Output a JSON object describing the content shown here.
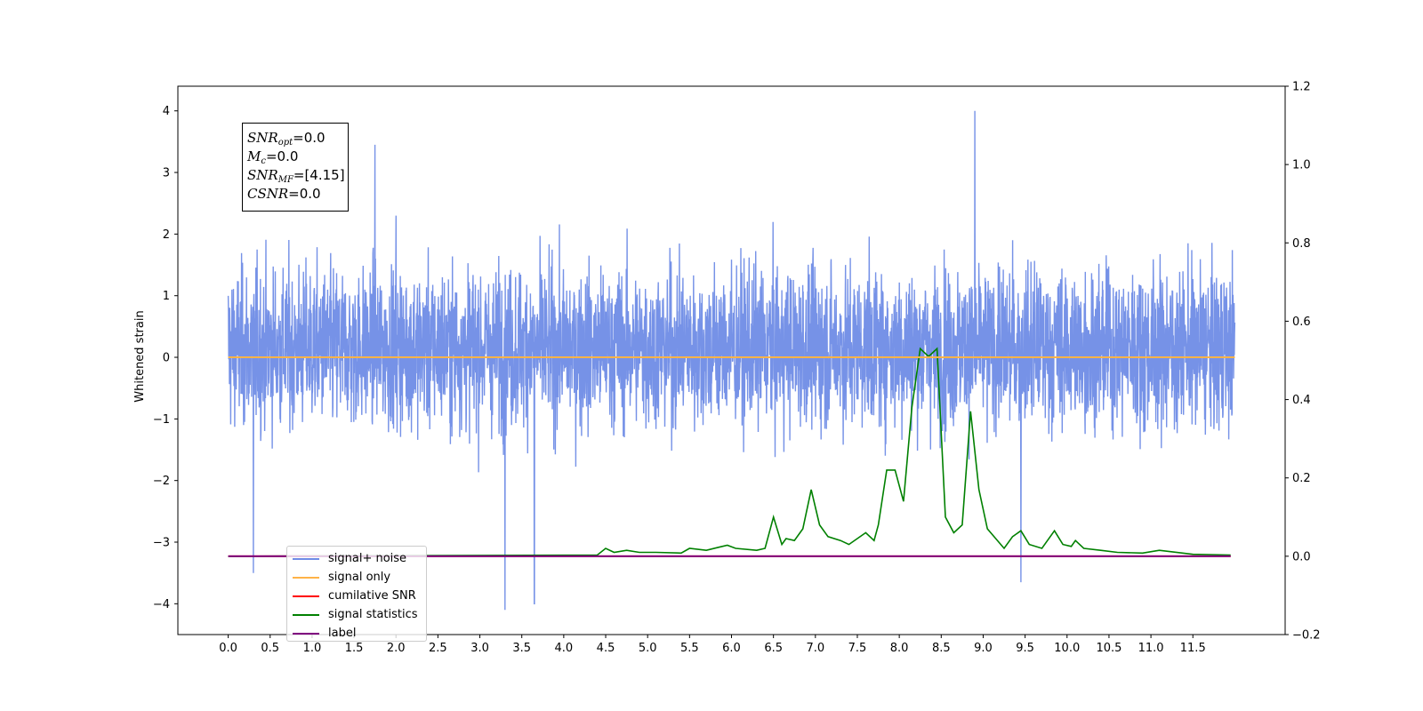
{
  "chart_data": {
    "type": "line",
    "ylabel": "Whitened strain",
    "x_ticks": [
      "0.0",
      "0.5",
      "1.0",
      "1.5",
      "2.0",
      "2.5",
      "3.0",
      "3.5",
      "4.0",
      "4.5",
      "5.0",
      "5.5",
      "6.0",
      "6.5",
      "7.0",
      "7.5",
      "8.0",
      "8.5",
      "9.0",
      "9.5",
      "10.0",
      "10.5",
      "11.0",
      "11.5"
    ],
    "xlim": [
      -0.6,
      12.6
    ],
    "ylim_left": [
      -4.5,
      4.4
    ],
    "yticks_left": [
      -4,
      -3,
      -2,
      -1,
      0,
      1,
      2,
      3,
      4
    ],
    "ylim_right": [
      -0.2,
      1.2
    ],
    "yticks_right": [
      -0.2,
      0.0,
      0.2,
      0.4,
      0.6,
      0.8,
      1.0,
      1.2
    ],
    "yticks_right_labels": [
      "−0.2",
      "0.0",
      "0.2",
      "0.4",
      "0.6",
      "0.8",
      "1.0",
      "1.2"
    ],
    "legend_location": "lower-left",
    "annotation_lines": [
      {
        "sym": "SNR",
        "sub": "opt",
        "value": "=0.0"
      },
      {
        "sym": "M",
        "sub": "c",
        "value": "=0.0"
      },
      {
        "sym": "SNR",
        "sub": "MF",
        "value": "=[4.15]"
      },
      {
        "sym": "CSNR",
        "sub": "",
        "value": "=0.0"
      }
    ],
    "series": [
      {
        "name": "signal+ noise",
        "color": "#6f8ce6",
        "axis": "left",
        "kind": "noise",
        "x_range": [
          0.0,
          12.0
        ],
        "approx_range": [
          -4.1,
          4.0
        ],
        "notable_extremes": [
          [
            0.3,
            -3.5
          ],
          [
            3.3,
            -4.1
          ],
          [
            3.65,
            -4.0
          ],
          [
            8.9,
            4.0
          ],
          [
            9.45,
            -3.65
          ],
          [
            2.0,
            2.3
          ],
          [
            1.75,
            3.45
          ]
        ]
      },
      {
        "name": "signal only",
        "color": "#ffb347",
        "axis": "left",
        "x": [
          0.0,
          12.0
        ],
        "y": [
          0.0,
          0.0
        ]
      },
      {
        "name": "cumilative SNR",
        "color": "#ff0000",
        "axis": "right",
        "x": [
          0.0,
          11.95
        ],
        "y": [
          0.0,
          0.0
        ]
      },
      {
        "name": "signal statistics",
        "color": "#008000",
        "axis": "right",
        "x": [
          0.0,
          4.4,
          4.5,
          4.6,
          4.75,
          4.9,
          5.1,
          5.4,
          5.5,
          5.7,
          5.85,
          5.95,
          6.05,
          6.3,
          6.4,
          6.5,
          6.6,
          6.65,
          6.75,
          6.85,
          6.95,
          7.05,
          7.15,
          7.3,
          7.4,
          7.6,
          7.7,
          7.75,
          7.85,
          7.95,
          8.05,
          8.15,
          8.25,
          8.35,
          8.45,
          8.55,
          8.65,
          8.75,
          8.85,
          8.95,
          9.05,
          9.25,
          9.35,
          9.45,
          9.55,
          9.7,
          9.85,
          9.95,
          10.05,
          10.1,
          10.2,
          10.4,
          10.6,
          10.9,
          11.1,
          11.5,
          11.95
        ],
        "y": [
          0.0,
          0.003,
          0.02,
          0.01,
          0.015,
          0.01,
          0.01,
          0.008,
          0.02,
          0.015,
          0.023,
          0.028,
          0.02,
          0.015,
          0.02,
          0.1,
          0.03,
          0.045,
          0.04,
          0.07,
          0.17,
          0.08,
          0.05,
          0.04,
          0.03,
          0.06,
          0.04,
          0.08,
          0.22,
          0.22,
          0.14,
          0.38,
          0.53,
          0.51,
          0.53,
          0.1,
          0.06,
          0.08,
          0.37,
          0.17,
          0.07,
          0.02,
          0.05,
          0.065,
          0.03,
          0.02,
          0.065,
          0.03,
          0.025,
          0.04,
          0.02,
          0.015,
          0.01,
          0.008,
          0.015,
          0.005,
          0.003
        ]
      },
      {
        "name": "label",
        "color": "#800080",
        "axis": "right",
        "x": [
          0.0,
          11.95
        ],
        "y": [
          0.0,
          0.0
        ]
      }
    ]
  }
}
